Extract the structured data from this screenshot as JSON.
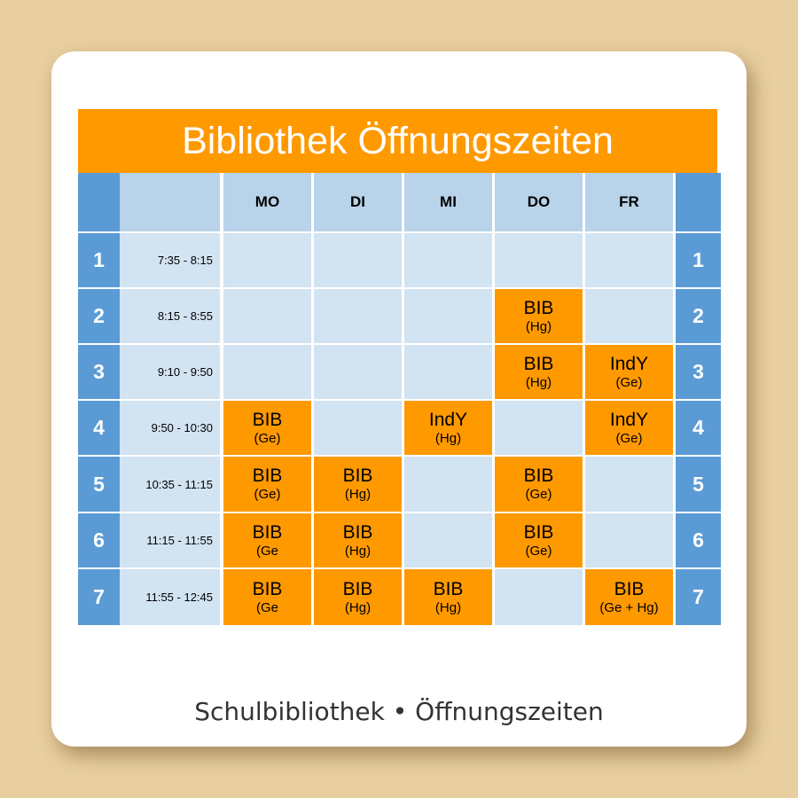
{
  "title": "Bibliothek Öffnungszeiten",
  "caption": "Schulbibliothek • Öffnungszeiten",
  "colors": {
    "background": "#e9cf9f",
    "title_bar": "#ff9900",
    "slot": "#ff9900",
    "number_column": "#5b9bd5",
    "header": "#b8d3ea",
    "empty_cell": "#d2e3f2"
  },
  "days": [
    "MO",
    "DI",
    "MI",
    "DO",
    "FR"
  ],
  "periods": [
    {
      "num": "1",
      "time": "7:35 - 8:15",
      "slots": [
        null,
        null,
        null,
        null,
        null
      ]
    },
    {
      "num": "2",
      "time": "8:15 - 8:55",
      "slots": [
        null,
        null,
        null,
        {
          "main": "BIB",
          "sub": "(Hg)"
        },
        null
      ]
    },
    {
      "num": "3",
      "time": "9:10 - 9:50",
      "slots": [
        null,
        null,
        null,
        {
          "main": "BIB",
          "sub": "(Hg)"
        },
        {
          "main": "IndY",
          "sub": "(Ge)"
        }
      ]
    },
    {
      "num": "4",
      "time": "9:50 - 10:30",
      "slots": [
        {
          "main": "BIB",
          "sub": "(Ge)"
        },
        null,
        {
          "main": "IndY",
          "sub": "(Hg)"
        },
        null,
        {
          "main": "IndY",
          "sub": "(Ge)"
        }
      ]
    },
    {
      "num": "5",
      "time": "10:35 - 11:15",
      "slots": [
        {
          "main": "BIB",
          "sub": "(Ge)"
        },
        {
          "main": "BIB",
          "sub": "(Hg)"
        },
        null,
        {
          "main": "BIB",
          "sub": "(Ge)"
        },
        null
      ]
    },
    {
      "num": "6",
      "time": "11:15 - 11:55",
      "slots": [
        {
          "main": "BIB",
          "sub": "(Ge"
        },
        {
          "main": "BIB",
          "sub": "(Hg)"
        },
        null,
        {
          "main": "BIB",
          "sub": "(Ge)"
        },
        null
      ]
    },
    {
      "num": "7",
      "time": "11:55 - 12:45",
      "slots": [
        {
          "main": "BIB",
          "sub": "(Ge"
        },
        {
          "main": "BIB",
          "sub": "(Hg)"
        },
        {
          "main": "BIB",
          "sub": "(Hg)"
        },
        null,
        {
          "main": "BIB",
          "sub": "(Ge + Hg)"
        }
      ]
    }
  ]
}
